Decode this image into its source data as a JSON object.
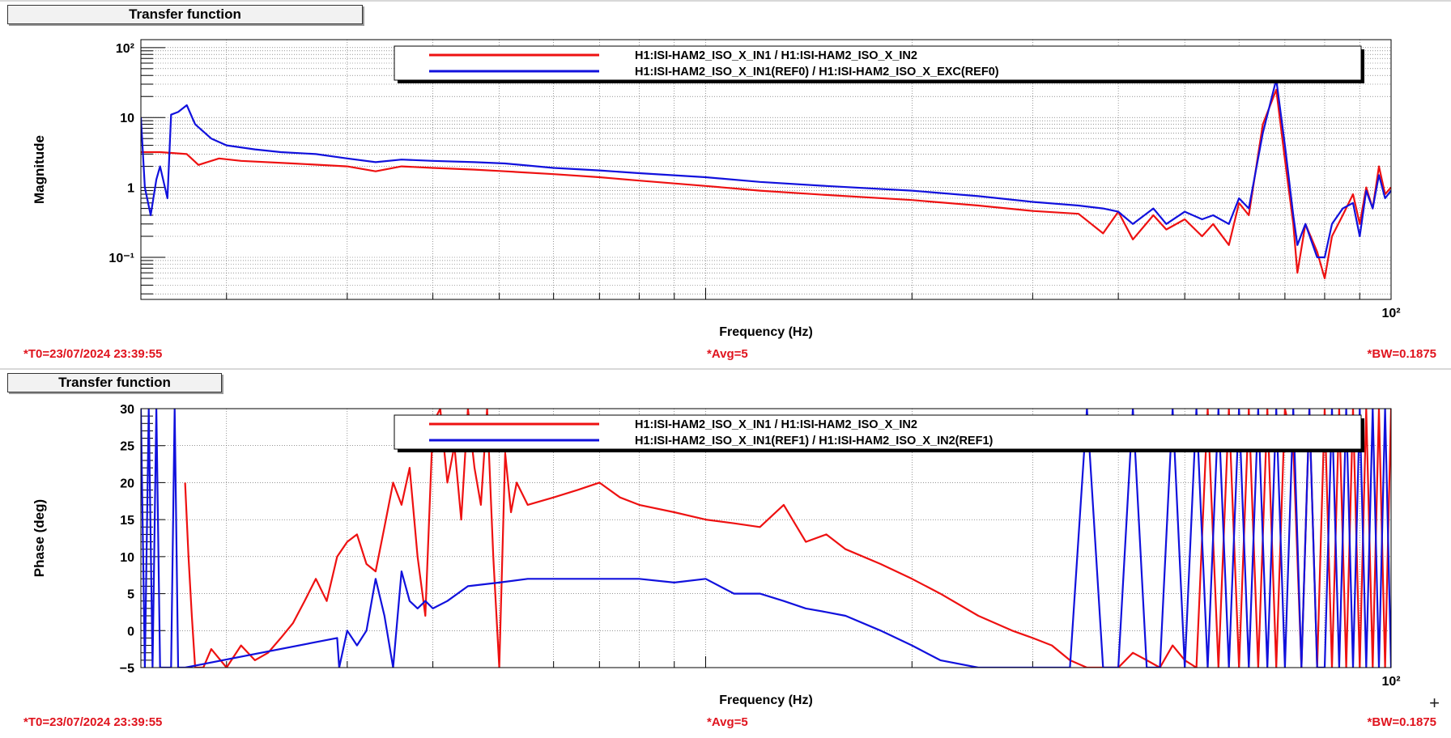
{
  "chart_data": [
    {
      "type": "line",
      "panel_title": "Transfer function",
      "xlabel": "Frequency (Hz)",
      "ylabel": "Magnitude",
      "xscale": "log",
      "yscale": "log",
      "xlim": [
        1.5,
        100
      ],
      "ylim": [
        0.025,
        130
      ],
      "y_ticks": [
        {
          "value": 100,
          "label": "10²"
        },
        {
          "value": 10,
          "label": "10"
        },
        {
          "value": 1,
          "label": "1"
        },
        {
          "value": 0.1,
          "label": "10⁻¹"
        }
      ],
      "x_ticks": [
        {
          "value": 100,
          "label": "10²"
        }
      ],
      "grid": true,
      "legend_position": "top",
      "series": [
        {
          "name": "H1:ISI-HAM2_ISO_X_IN1 / H1:ISI-HAM2_ISO_X_IN2",
          "color": "#ee1111",
          "x": [
            1.5,
            1.6,
            1.75,
            1.82,
            1.95,
            2.1,
            2.5,
            3.0,
            3.3,
            3.6,
            4.0,
            4.6,
            5.1,
            6.0,
            7.0,
            8.0,
            10,
            12,
            15,
            20,
            25,
            30,
            35,
            38,
            40,
            42,
            45,
            47,
            50,
            53,
            55,
            58,
            60,
            62,
            65,
            68,
            70,
            72,
            73,
            75,
            78,
            80,
            82,
            85,
            88,
            90,
            92,
            94,
            96,
            98,
            100
          ],
          "values": [
            3.2,
            3.2,
            3.0,
            2.1,
            2.6,
            2.4,
            2.2,
            2.0,
            1.7,
            2.0,
            1.9,
            1.8,
            1.7,
            1.55,
            1.4,
            1.25,
            1.05,
            0.9,
            0.78,
            0.66,
            0.55,
            0.46,
            0.42,
            0.22,
            0.45,
            0.18,
            0.4,
            0.25,
            0.35,
            0.2,
            0.3,
            0.15,
            0.6,
            0.4,
            8.0,
            25,
            2.5,
            0.3,
            0.06,
            0.3,
            0.12,
            0.05,
            0.2,
            0.4,
            0.8,
            0.3,
            1.0,
            0.5,
            2.0,
            0.8,
            1.0
          ]
        },
        {
          "name": "H1:ISI-HAM2_ISO_X_IN1(REF0) / H1:ISI-HAM2_ISO_X_EXC(REF0)",
          "color": "#1111dd",
          "x": [
            1.5,
            1.52,
            1.55,
            1.58,
            1.6,
            1.64,
            1.66,
            1.7,
            1.75,
            1.8,
            1.9,
            2.0,
            2.2,
            2.4,
            2.7,
            3.0,
            3.3,
            3.6,
            4.0,
            4.6,
            5.1,
            6.0,
            7.0,
            8.0,
            10,
            12,
            15,
            20,
            25,
            30,
            35,
            38,
            40,
            42,
            45,
            47,
            50,
            53,
            55,
            58,
            60,
            62,
            65,
            68,
            70,
            72,
            73,
            75,
            78,
            80,
            82,
            85,
            88,
            90,
            92,
            94,
            96,
            98,
            100
          ],
          "values": [
            10,
            1.0,
            0.4,
            1.3,
            2.0,
            0.7,
            11,
            12,
            15,
            8.0,
            5.0,
            4.0,
            3.5,
            3.2,
            3.0,
            2.6,
            2.3,
            2.5,
            2.4,
            2.3,
            2.2,
            1.9,
            1.75,
            1.6,
            1.4,
            1.2,
            1.05,
            0.9,
            0.75,
            0.62,
            0.55,
            0.5,
            0.45,
            0.3,
            0.5,
            0.3,
            0.45,
            0.35,
            0.4,
            0.3,
            0.7,
            0.5,
            6.0,
            35,
            4.0,
            0.4,
            0.15,
            0.3,
            0.1,
            0.1,
            0.3,
            0.5,
            0.6,
            0.2,
            0.9,
            0.5,
            1.5,
            0.7,
            0.9
          ]
        }
      ],
      "footer": {
        "left": "*T0=23/07/2024 23:39:55",
        "center": "*Avg=5",
        "right": "*BW=0.1875"
      }
    },
    {
      "type": "line",
      "panel_title": "Transfer function",
      "xlabel": "Frequency (Hz)",
      "ylabel": "Phase (deg)",
      "xscale": "log",
      "yscale": "linear",
      "xlim": [
        1.5,
        100
      ],
      "ylim": [
        -5,
        30
      ],
      "y_ticks": [
        {
          "value": 30,
          "label": "30"
        },
        {
          "value": 25,
          "label": "25"
        },
        {
          "value": 20,
          "label": "20"
        },
        {
          "value": 15,
          "label": "15"
        },
        {
          "value": 10,
          "label": "10"
        },
        {
          "value": 5,
          "label": "5"
        },
        {
          "value": 0,
          "label": "0"
        },
        {
          "value": -5,
          "label": "−5"
        }
      ],
      "x_ticks": [
        {
          "value": 100,
          "label": "10²"
        }
      ],
      "grid": true,
      "legend_position": "top",
      "series": [
        {
          "name": "H1:ISI-HAM2_ISO_X_IN1 / H1:ISI-HAM2_ISO_X_IN2",
          "color": "#ee1111",
          "x": [
            1.74,
            1.76,
            1.78,
            1.8,
            1.82,
            1.85,
            1.9,
            2.0,
            2.1,
            2.2,
            2.3,
            2.4,
            2.5,
            2.6,
            2.7,
            2.8,
            2.9,
            3.0,
            3.1,
            3.2,
            3.3,
            3.4,
            3.5,
            3.6,
            3.7,
            3.8,
            3.9,
            4.0,
            4.1,
            4.2,
            4.3,
            4.4,
            4.5,
            4.6,
            4.7,
            4.8,
            4.9,
            5.0,
            5.1,
            5.2,
            5.3,
            5.5,
            6.0,
            6.5,
            7.0,
            7.5,
            8.0,
            9.0,
            10,
            11,
            12,
            13,
            14,
            15,
            16,
            18,
            20,
            22,
            25,
            28,
            30,
            32,
            34,
            36,
            38,
            40,
            42,
            44,
            46,
            48,
            50,
            52,
            54,
            56,
            58,
            60,
            62,
            64,
            66,
            68,
            70,
            72,
            74,
            76,
            78,
            80,
            82,
            84,
            86,
            88,
            90,
            92,
            94,
            96,
            98,
            100
          ],
          "values": [
            20,
            10,
            2,
            -5,
            -5,
            -5,
            -2.5,
            -5,
            -2,
            -4,
            -3,
            -1,
            1,
            4,
            7,
            4,
            10,
            12,
            13,
            9,
            8,
            14,
            20,
            17,
            22,
            10,
            2,
            28,
            30,
            20,
            25,
            15,
            33,
            22,
            17,
            33,
            10,
            -5,
            24,
            16,
            20,
            17,
            18,
            19,
            20,
            18,
            17,
            16,
            15,
            14.5,
            14,
            17,
            12,
            13,
            11,
            9,
            7,
            5,
            2,
            0,
            -1,
            -2,
            -4,
            -5,
            -5,
            -5,
            -3,
            -4,
            -5,
            -2,
            -4,
            -5,
            30,
            -5,
            30,
            -5,
            30,
            -5,
            30,
            -5,
            30,
            25,
            -5,
            30,
            -5,
            30,
            -5,
            30,
            -5,
            30,
            -5,
            30,
            -5,
            30,
            -5,
            30
          ],
          "line_break_after_index": 72
        },
        {
          "name": "H1:ISI-HAM2_ISO_X_IN1(REF1) / H1:ISI-HAM2_ISO_X_IN2(REF1)",
          "color": "#1111dd",
          "x": [
            1.5,
            1.52,
            1.54,
            1.56,
            1.58,
            1.6,
            1.62,
            1.66,
            1.68,
            1.7,
            1.72,
            1.74,
            2.9,
            2.92,
            3.0,
            3.1,
            3.2,
            3.3,
            3.4,
            3.5,
            3.6,
            3.7,
            3.8,
            3.9,
            4.0,
            4.2,
            4.5,
            5.0,
            5.5,
            6.0,
            7.0,
            8.0,
            9.0,
            10,
            11,
            12,
            13,
            14,
            15,
            16,
            18,
            20,
            22,
            25,
            28,
            30,
            32,
            34,
            36,
            38,
            40,
            42,
            44,
            46,
            48,
            50,
            52,
            54,
            56,
            58,
            60,
            62,
            64,
            66,
            68,
            70,
            72,
            74,
            76,
            78,
            80,
            82,
            84,
            86,
            88,
            90,
            92,
            94,
            96,
            98,
            100
          ],
          "values": [
            30,
            -5,
            30,
            -5,
            30,
            -5,
            -5,
            -5,
            30,
            -5,
            -5,
            -5,
            -1,
            -5,
            0,
            -2,
            0,
            7,
            2,
            -5,
            8,
            4,
            3,
            4,
            3,
            4,
            6,
            6.5,
            7,
            7,
            7,
            7,
            6.5,
            7,
            5,
            5,
            4,
            3,
            2.5,
            2,
            0,
            -2,
            -4,
            -5,
            -5,
            -5,
            -5,
            -5,
            30,
            -5,
            -5,
            30,
            -5,
            -5,
            30,
            -5,
            30,
            -5,
            30,
            -5,
            30,
            -5,
            30,
            -5,
            30,
            -5,
            30,
            -5,
            30,
            -5,
            -5,
            30,
            -5,
            30,
            -5,
            30,
            -5,
            30,
            -5,
            30,
            -5
          ],
          "line_break_after_index": 43
        }
      ],
      "footer": {
        "left": "*T0=23/07/2024 23:39:55",
        "center": "*Avg=5",
        "right": "*BW=0.1875"
      }
    }
  ]
}
